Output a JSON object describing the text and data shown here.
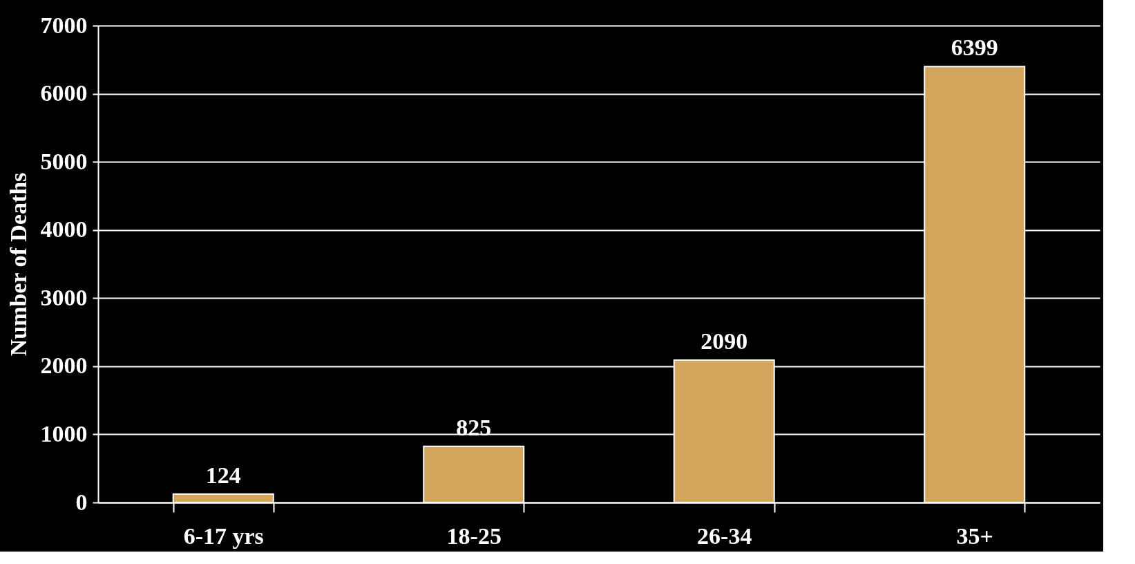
{
  "chart_data": {
    "type": "bar",
    "ylabel": "Number of Deaths",
    "categories": [
      "6-17 yrs",
      "18-25",
      "26-34",
      "35+"
    ],
    "values": [
      124,
      825,
      2090,
      6399
    ],
    "color": "#d4a55c",
    "ylim": [
      0,
      7000
    ],
    "yticks": [
      0,
      1000,
      2000,
      3000,
      4000,
      5000,
      6000,
      7000
    ],
    "grid": "y",
    "data_labels": true
  }
}
